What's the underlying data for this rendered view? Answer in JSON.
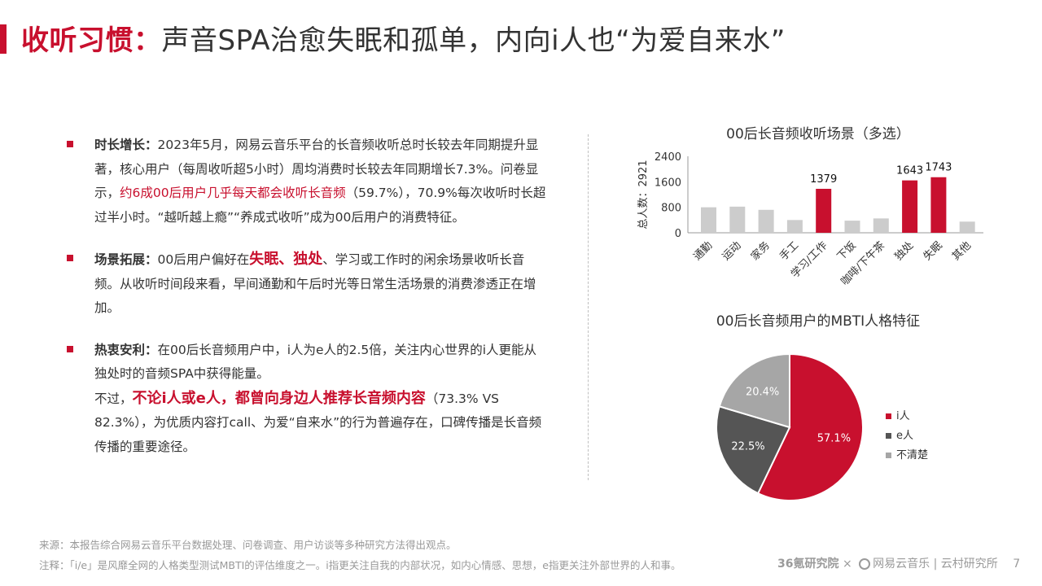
{
  "header": {
    "title_highlight": "收听习惯：",
    "title_rest": "声音SPA治愈失眠和孤单，内向i人也“为爱自来水”"
  },
  "points": [
    {
      "label": "时长增长",
      "colon": "：",
      "text_a": "2023年5月，网易云音乐平台的长音频收听总时长较去年同期提升显著，核心用户（每周收听超5小时）周均消费时长较去年同期增长7.3%。问卷显示，",
      "text_red": "约6成00后用户几乎每天都会收听长音频",
      "text_b": "（59.7%），70.9%每次收听时长超过半小时。“越听越上瘾”“养成式收听”成为00后用户的消费特征。"
    },
    {
      "label": "场景拓展",
      "colon": "：",
      "text_a": "00后用户偏好在",
      "text_red": "失眠、独处",
      "text_b": "、学习或工作时的闲余场景收听长音频。从收听时间段来看，早间通勤和午后时光等日常生活场景的消费渗透正在增加。"
    },
    {
      "label": "热衷安利",
      "colon": "：",
      "text_a": "在00后长音频用户中，i人为e人的2.5倍，关注内心世界的i人更能从独处时的音频SPA中获得能量。",
      "text_c": "不过，",
      "text_red": "不论i人或e人，都曾向身边人推荐长音频内容",
      "text_b": "（73.3% VS 82.3%），为优质内容打call、为爱“自来水”的行为普遍存在，口碑传播是长音频传播的重要途径。"
    }
  ],
  "chart_data": [
    {
      "type": "bar",
      "title": "00后长音频收听场景（多选）",
      "ylabel": "总人数：2921",
      "ylim": [
        0,
        2400
      ],
      "yticks": [
        "0",
        "800",
        "1600",
        "2400"
      ],
      "categories": [
        "通勤",
        "运动",
        "家务",
        "手工",
        "学习/工作",
        "下饭",
        "咖啡/下午茶",
        "独处",
        "失眠",
        "其他"
      ],
      "values": [
        800,
        820,
        720,
        400,
        1379,
        380,
        450,
        1643,
        1743,
        350
      ],
      "highlight": [
        false,
        false,
        false,
        false,
        true,
        false,
        false,
        true,
        true,
        false
      ],
      "value_labels": [
        "",
        "",
        "",
        "",
        "1379",
        "",
        "",
        "1643",
        "1743",
        ""
      ],
      "colors": {
        "highlight": "#c8102e",
        "normal": "#cccccc"
      }
    },
    {
      "type": "pie",
      "title": "00后长音频用户的MBTI人格特征",
      "slices": [
        {
          "name": "i人",
          "value": 57.1,
          "label": "57.1%",
          "color": "#c8102e"
        },
        {
          "name": "e人",
          "value": 22.5,
          "label": "22.5%",
          "color": "#555555"
        },
        {
          "name": "不清楚",
          "value": 20.4,
          "label": "20.4%",
          "color": "#a6a6a6"
        }
      ],
      "legend": "right"
    }
  ],
  "footer": {
    "source": "来源：本报告综合网易云音乐平台数据处理、问卷调查、用户访谈等多种研究方法得出观点。",
    "note": "注释：「i/e」是风靡全网的人格类型测试MBTI的评估维度之一。i指更关注自我的内部状况，如内心情感、思想，e指更关注外部世界的人和事。",
    "logo_36kr": "36氪研究院",
    "times": "×",
    "logo_netease": "网易云音乐",
    "sep": "|",
    "logo_cloud": "云村研究所",
    "page": "7"
  }
}
